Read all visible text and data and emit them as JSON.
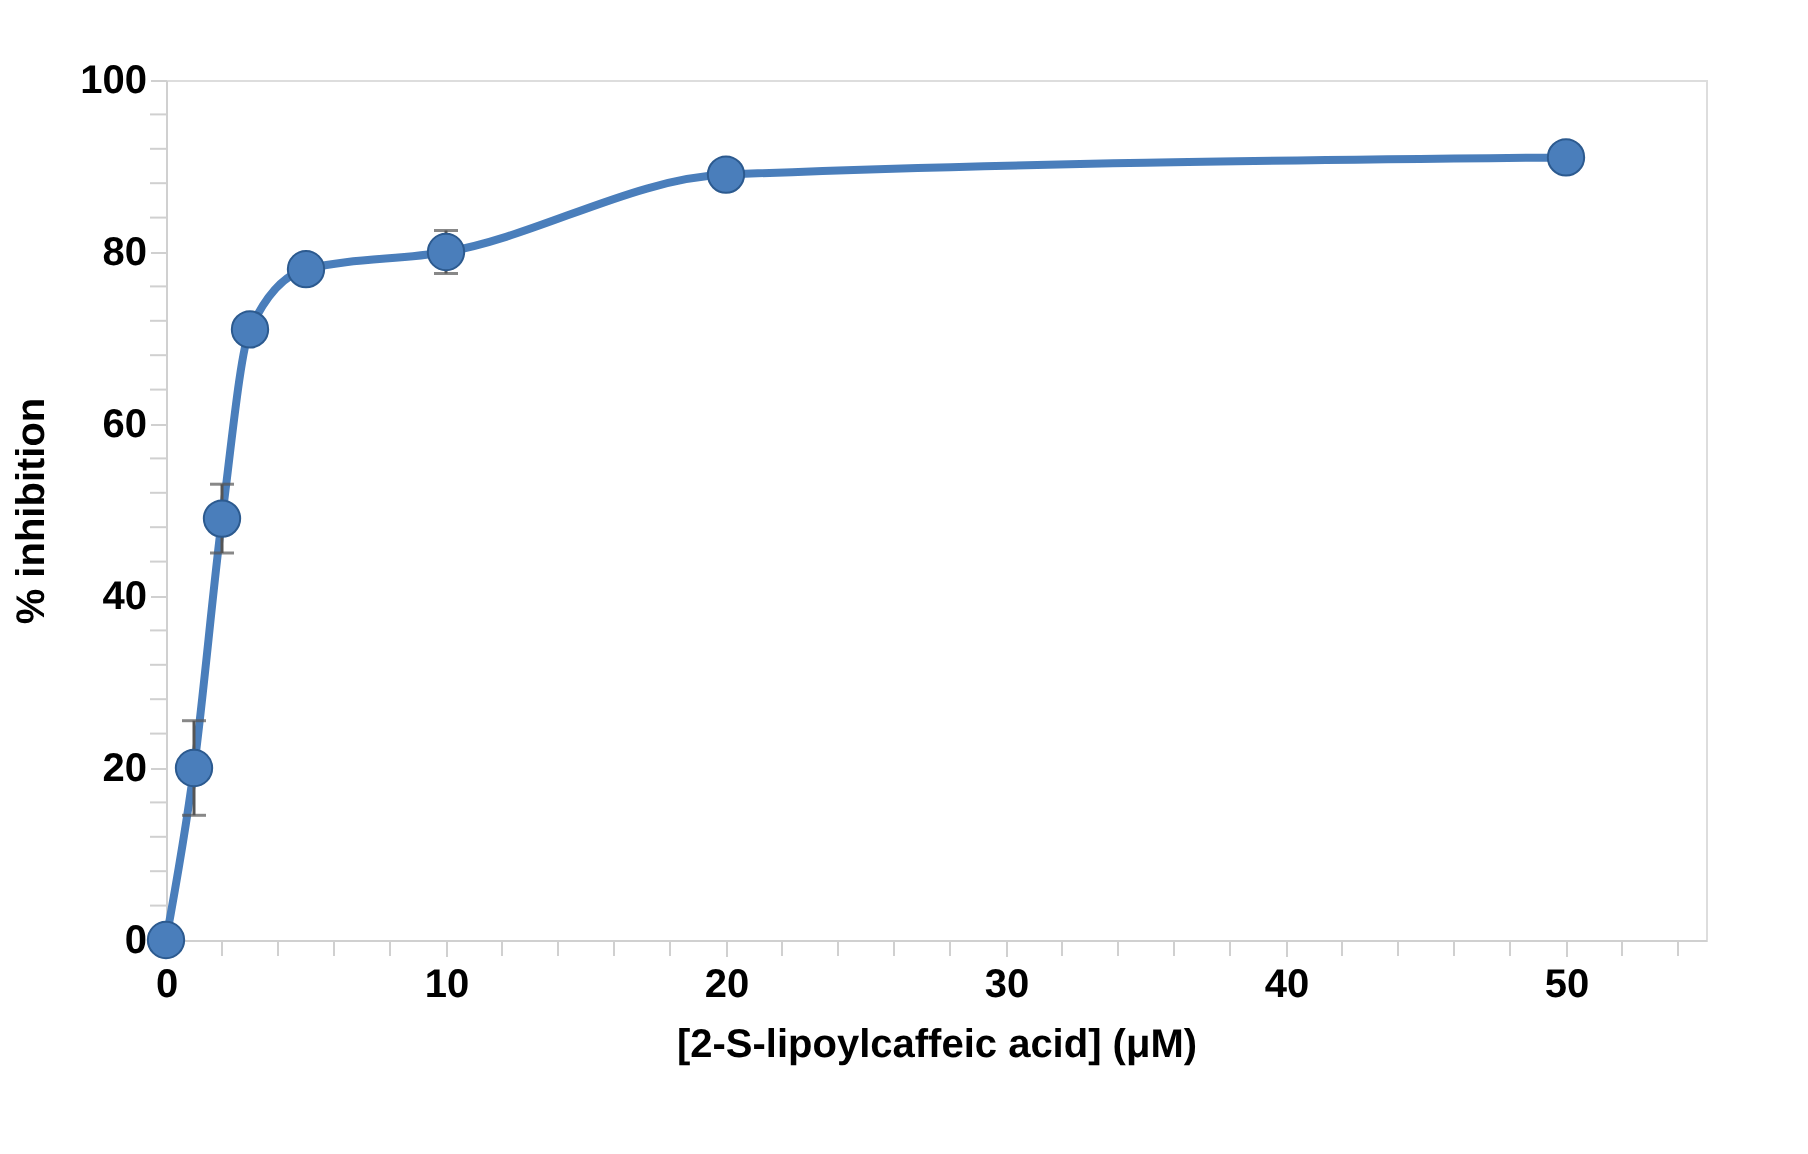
{
  "chart_data": {
    "type": "line",
    "xlabel": "[2-S-lipoylcaffeic acid] (μM)",
    "ylabel": "% inhibition",
    "x": [
      0,
      1,
      2,
      3,
      5,
      10,
      20,
      50
    ],
    "series": [
      {
        "color": "#4a7ebb",
        "values": [
          0,
          20,
          49,
          71,
          78,
          80,
          89,
          91
        ],
        "errors": [
          null,
          5.5,
          4,
          null,
          null,
          2.5,
          null,
          null
        ]
      }
    ],
    "xlim": [
      0,
      55
    ],
    "ylim": [
      0,
      100
    ],
    "xticks": [
      0,
      {
        "value": 2,
        "label": null
      },
      {
        "value": 4,
        "label": null
      },
      {
        "value": 6,
        "label": null
      },
      {
        "value": 8,
        "label": null
      },
      10,
      {
        "value": 12,
        "label": null
      },
      {
        "value": 14,
        "label": null
      },
      {
        "value": 16,
        "label": null
      },
      {
        "value": 18,
        "label": null
      },
      20,
      {
        "value": 22,
        "label": null
      },
      {
        "value": 24,
        "label": null
      },
      {
        "value": 26,
        "label": null
      },
      {
        "value": 28,
        "label": null
      },
      30,
      {
        "value": 32,
        "label": null
      },
      {
        "value": 34,
        "label": null
      },
      {
        "value": 36,
        "label": null
      },
      {
        "value": 38,
        "label": null
      },
      40,
      {
        "value": 42,
        "label": null
      },
      {
        "value": 44,
        "label": null
      },
      {
        "value": 46,
        "label": null
      },
      {
        "value": 48,
        "label": null
      },
      50,
      {
        "value": 52,
        "label": null
      },
      {
        "value": 54,
        "label": null
      }
    ],
    "yticks": [
      0,
      {
        "value": 4,
        "label": null
      },
      {
        "value": 8,
        "label": null
      },
      {
        "value": 12,
        "label": null
      },
      {
        "value": 16,
        "label": null
      },
      20,
      {
        "value": 24,
        "label": null
      },
      {
        "value": 28,
        "label": null
      },
      {
        "value": 32,
        "label": null
      },
      {
        "value": 36,
        "label": null
      },
      40,
      {
        "value": 44,
        "label": null
      },
      {
        "value": 48,
        "label": null
      },
      {
        "value": 52,
        "label": null
      },
      {
        "value": 56,
        "label": null
      },
      60,
      {
        "value": 64,
        "label": null
      },
      {
        "value": 68,
        "label": null
      },
      {
        "value": 72,
        "label": null
      },
      {
        "value": 76,
        "label": null
      },
      80,
      {
        "value": 84,
        "label": null
      },
      {
        "value": 88,
        "label": null
      },
      {
        "value": 92,
        "label": null
      },
      {
        "value": 96,
        "label": null
      },
      100
    ],
    "grid": false,
    "marker": "circle",
    "line_style": "solid"
  }
}
